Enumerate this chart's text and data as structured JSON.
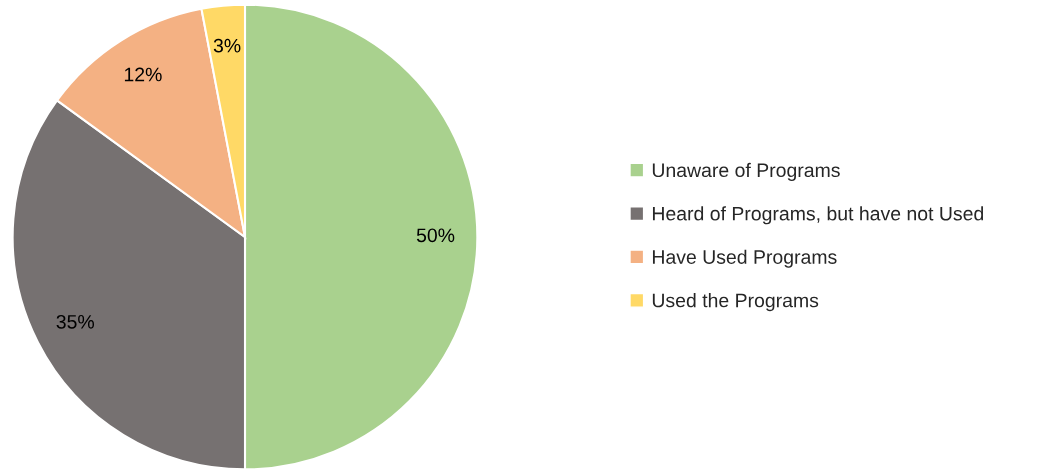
{
  "chart_data": {
    "type": "pie",
    "categories": [
      "Unaware of Programs",
      "Heard of Programs, but have not Used",
      "Have Used Programs",
      "Used the Programs"
    ],
    "values": [
      50,
      35,
      12,
      3
    ],
    "colors": [
      "#a9d18e",
      "#767171",
      "#f4b183",
      "#ffd966"
    ],
    "value_labels": [
      "50%",
      "35%",
      "12%",
      "3%"
    ],
    "legend": "right"
  }
}
